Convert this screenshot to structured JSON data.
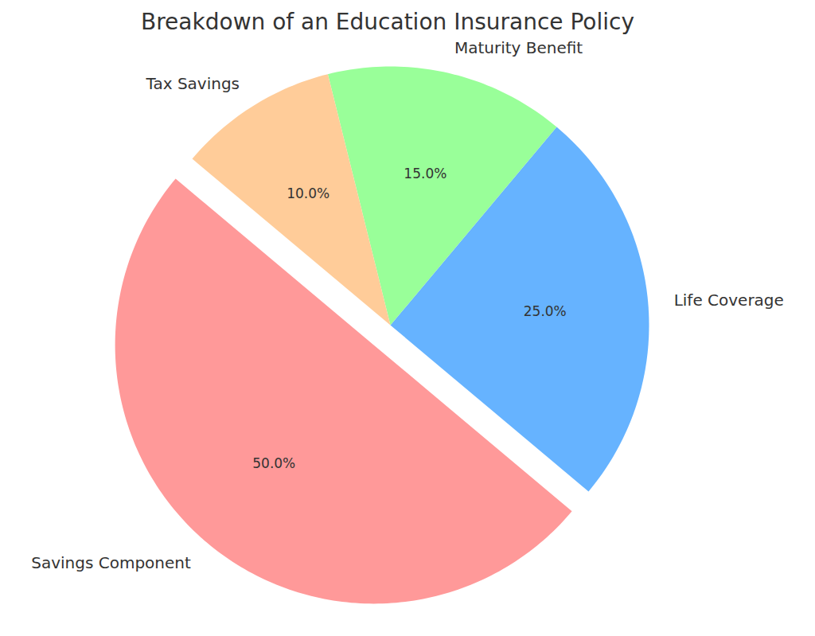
{
  "chart_data": {
    "type": "pie",
    "title": "Breakdown of an Education Insurance Policy",
    "categories": [
      "Savings Component",
      "Life Coverage",
      "Maturity Benefit",
      "Tax Savings"
    ],
    "values": [
      50,
      25,
      15,
      10
    ],
    "value_labels": [
      "50.0%",
      "25.0%",
      "15.0%",
      "10.0%"
    ],
    "colors": [
      "#ff9999",
      "#66b3ff",
      "#99ff99",
      "#ffcc99"
    ],
    "data_labels": true
  }
}
